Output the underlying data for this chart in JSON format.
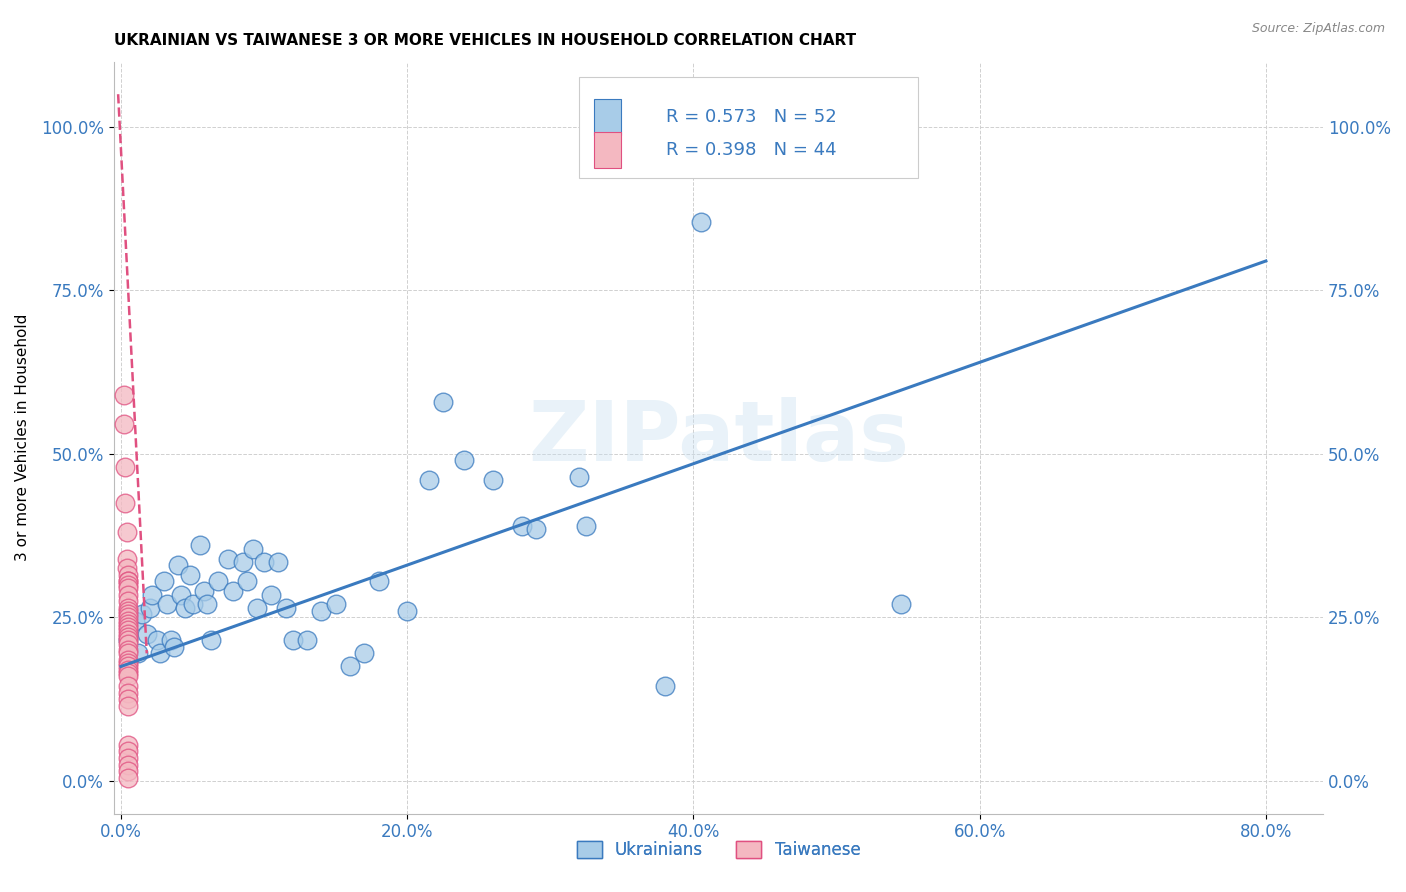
{
  "title": "UKRAINIAN VS TAIWANESE 3 OR MORE VEHICLES IN HOUSEHOLD CORRELATION CHART",
  "source": "Source: ZipAtlas.com",
  "xlabel_tick_vals": [
    0.0,
    0.2,
    0.4,
    0.6,
    0.8
  ],
  "ylabel_tick_vals": [
    0.0,
    0.25,
    0.5,
    0.75,
    1.0
  ],
  "ylabel": "3 or more Vehicles in Household",
  "legend_labels": [
    "Ukrainians",
    "Taiwanese"
  ],
  "blue_R": "R = 0.573",
  "blue_N": "N = 52",
  "pink_R": "R = 0.398",
  "pink_N": "N = 44",
  "watermark": "ZIPatlas",
  "blue_color": "#a8cce8",
  "pink_color": "#f4b8c1",
  "blue_line_color": "#3a7abf",
  "pink_line_color": "#e05080",
  "blue_scatter": [
    [
      0.005,
      0.215
    ],
    [
      0.01,
      0.245
    ],
    [
      0.012,
      0.195
    ],
    [
      0.015,
      0.255
    ],
    [
      0.018,
      0.225
    ],
    [
      0.02,
      0.265
    ],
    [
      0.022,
      0.285
    ],
    [
      0.025,
      0.215
    ],
    [
      0.027,
      0.195
    ],
    [
      0.03,
      0.305
    ],
    [
      0.032,
      0.27
    ],
    [
      0.035,
      0.215
    ],
    [
      0.037,
      0.205
    ],
    [
      0.04,
      0.33
    ],
    [
      0.042,
      0.285
    ],
    [
      0.045,
      0.265
    ],
    [
      0.048,
      0.315
    ],
    [
      0.05,
      0.27
    ],
    [
      0.055,
      0.36
    ],
    [
      0.058,
      0.29
    ],
    [
      0.06,
      0.27
    ],
    [
      0.063,
      0.215
    ],
    [
      0.068,
      0.305
    ],
    [
      0.075,
      0.34
    ],
    [
      0.078,
      0.29
    ],
    [
      0.085,
      0.335
    ],
    [
      0.088,
      0.305
    ],
    [
      0.092,
      0.355
    ],
    [
      0.095,
      0.265
    ],
    [
      0.1,
      0.335
    ],
    [
      0.105,
      0.285
    ],
    [
      0.11,
      0.335
    ],
    [
      0.115,
      0.265
    ],
    [
      0.12,
      0.215
    ],
    [
      0.13,
      0.215
    ],
    [
      0.14,
      0.26
    ],
    [
      0.15,
      0.27
    ],
    [
      0.16,
      0.175
    ],
    [
      0.17,
      0.195
    ],
    [
      0.18,
      0.305
    ],
    [
      0.2,
      0.26
    ],
    [
      0.215,
      0.46
    ],
    [
      0.225,
      0.58
    ],
    [
      0.24,
      0.49
    ],
    [
      0.26,
      0.46
    ],
    [
      0.28,
      0.39
    ],
    [
      0.29,
      0.385
    ],
    [
      0.32,
      0.465
    ],
    [
      0.325,
      0.39
    ],
    [
      0.38,
      0.145
    ],
    [
      0.405,
      0.855
    ],
    [
      0.545,
      0.27
    ]
  ],
  "pink_scatter": [
    [
      0.002,
      0.545
    ],
    [
      0.002,
      0.59
    ],
    [
      0.003,
      0.48
    ],
    [
      0.003,
      0.425
    ],
    [
      0.004,
      0.38
    ],
    [
      0.004,
      0.34
    ],
    [
      0.004,
      0.325
    ],
    [
      0.005,
      0.315
    ],
    [
      0.005,
      0.305
    ],
    [
      0.005,
      0.305
    ],
    [
      0.005,
      0.3
    ],
    [
      0.005,
      0.295
    ],
    [
      0.005,
      0.285
    ],
    [
      0.005,
      0.275
    ],
    [
      0.005,
      0.265
    ],
    [
      0.005,
      0.26
    ],
    [
      0.005,
      0.255
    ],
    [
      0.005,
      0.25
    ],
    [
      0.005,
      0.245
    ],
    [
      0.005,
      0.24
    ],
    [
      0.005,
      0.235
    ],
    [
      0.005,
      0.23
    ],
    [
      0.005,
      0.225
    ],
    [
      0.005,
      0.22
    ],
    [
      0.005,
      0.215
    ],
    [
      0.005,
      0.21
    ],
    [
      0.005,
      0.2
    ],
    [
      0.005,
      0.195
    ],
    [
      0.005,
      0.185
    ],
    [
      0.005,
      0.18
    ],
    [
      0.005,
      0.175
    ],
    [
      0.005,
      0.17
    ],
    [
      0.005,
      0.165
    ],
    [
      0.005,
      0.16
    ],
    [
      0.005,
      0.145
    ],
    [
      0.005,
      0.135
    ],
    [
      0.005,
      0.125
    ],
    [
      0.005,
      0.115
    ],
    [
      0.005,
      0.055
    ],
    [
      0.005,
      0.045
    ],
    [
      0.005,
      0.035
    ],
    [
      0.005,
      0.025
    ],
    [
      0.005,
      0.015
    ],
    [
      0.005,
      0.005
    ]
  ],
  "blue_trendline_x": [
    0.0,
    0.8
  ],
  "blue_trendline_y": [
    0.175,
    0.795
  ],
  "pink_trendline_x": [
    -0.002,
    0.018
  ],
  "pink_trendline_y": [
    1.05,
    0.195
  ],
  "xlim": [
    -0.005,
    0.84
  ],
  "ylim": [
    -0.05,
    1.1
  ]
}
